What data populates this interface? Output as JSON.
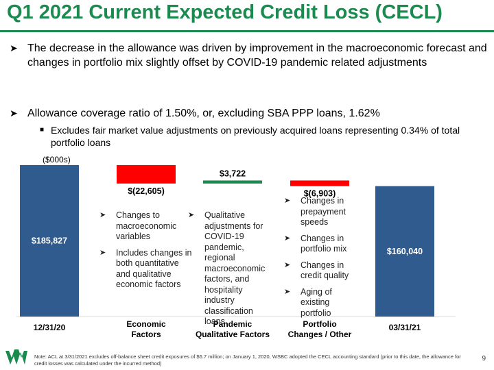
{
  "title": "Q1 2021 Current Expected Credit Loss (CECL)",
  "bullets": [
    "The decrease in the allowance was driven by improvement in the macroeconomic forecast and changes in portfolio mix slightly offset by COVID-19 pandemic related adjustments",
    "Allowance coverage ratio of 1.50%, or, excluding SBA PPP loans, 1.62%"
  ],
  "sub_bullet": "Excludes fair market value adjustments on previously acquired loans representing 0.34% of total portfolio loans",
  "units_label": "($000s)",
  "chart_data": {
    "type": "bar",
    "subtype": "waterfall",
    "categories": [
      "12/31/20",
      "Economic Factors",
      "Pandemic Qualitative Factors",
      "Portfolio Changes / Other",
      "03/31/21"
    ],
    "values": [
      185827,
      -22605,
      3722,
      -6903,
      160040
    ],
    "value_labels": [
      "$185,827",
      "$(22,605)",
      "$3,722",
      "$(6,903)",
      "$160,040"
    ],
    "category_lines": [
      [
        "12/31/20"
      ],
      [
        "Economic",
        "Factors"
      ],
      [
        "Pandemic",
        "Qualitative Factors"
      ],
      [
        "Portfolio",
        "Changes / Other"
      ],
      [
        "03/31/21"
      ]
    ],
    "bar_kinds": [
      "total",
      "decrease",
      "increase",
      "decrease",
      "total"
    ],
    "colors": {
      "total": "#2f5b8f",
      "decrease": "#ff0000",
      "increase": "#1a8a4f"
    },
    "ylim": [
      0,
      190000
    ],
    "notes": [
      {
        "category": "Economic Factors",
        "items": [
          "Changes to macroeconomic variables",
          "Includes changes in both quantitative and qualitative economic factors"
        ]
      },
      {
        "category": "Pandemic Qualitative Factors",
        "items": [
          "Qualitative adjustments for COVID-19 pandemic, regional macroeconomic factors, and hospitality industry classification loans"
        ]
      },
      {
        "category": "Portfolio Changes / Other",
        "items": [
          "Changes in prepayment speeds",
          "Changes in portfolio mix",
          "Changes in credit quality",
          "Aging of existing portfolio"
        ]
      }
    ]
  },
  "footnote": "Note: ACL at 3/31/2021 excludes off-balance sheet credit exposures of $6.7 million; on January 1, 2020, WSBC adopted the CECL accounting standard (prior to this date, the allowance for credit losses was calculated under the incurred method)",
  "page_number": "9",
  "colors": {
    "brand_green": "#1a8a4f"
  },
  "icons": {
    "bullet": "arrowhead-bullet-icon",
    "sub_bullet": "square-bullet-icon",
    "logo": "wesbanco-logo"
  }
}
